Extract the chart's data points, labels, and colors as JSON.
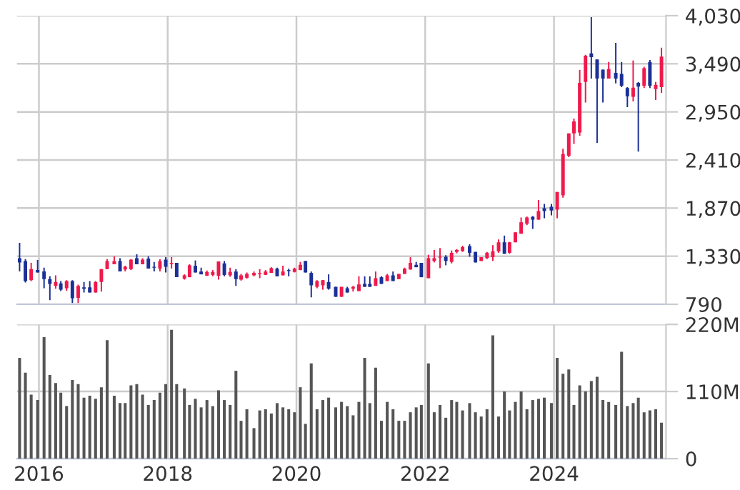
{
  "chart_data": [
    {
      "type": "candlestick",
      "x": [
        2015.7,
        2015.79,
        2015.88,
        2015.98,
        2016.08,
        2016.17,
        2016.26,
        2016.34,
        2016.43,
        2016.52,
        2016.61,
        2016.7,
        2016.79,
        2016.88,
        2016.97,
        2017.06,
        2017.17,
        2017.26,
        2017.34,
        2017.43,
        2017.52,
        2017.61,
        2017.7,
        2017.79,
        2017.88,
        2017.97,
        2018.06,
        2018.14,
        2018.26,
        2018.34,
        2018.43,
        2018.52,
        2018.61,
        2018.7,
        2018.79,
        2018.88,
        2018.97,
        2019.06,
        2019.14,
        2019.23,
        2019.34,
        2019.43,
        2019.52,
        2019.61,
        2019.7,
        2019.79,
        2019.88,
        2019.97,
        2020.06,
        2020.14,
        2020.23,
        2020.32,
        2020.41,
        2020.5,
        2020.61,
        2020.7,
        2020.79,
        2020.88,
        2020.97,
        2021.06,
        2021.14,
        2021.23,
        2021.32,
        2021.41,
        2021.5,
        2021.59,
        2021.68,
        2021.77,
        2021.86,
        2021.94,
        2022.05,
        2022.14,
        2022.23,
        2022.32,
        2022.41,
        2022.49,
        2022.58,
        2022.69,
        2022.78,
        2022.87,
        2022.96,
        2023.05,
        2023.14,
        2023.23,
        2023.31,
        2023.4,
        2023.49,
        2023.58,
        2023.67,
        2023.76,
        2023.85,
        2023.96,
        2024.05,
        2024.14,
        2024.23,
        2024.31,
        2024.4,
        2024.49,
        2024.58,
        2024.67,
        2024.76,
        2024.85,
        2024.96,
        2025.05,
        2025.14,
        2025.23,
        2025.31,
        2025.4,
        2025.49,
        2025.58,
        2025.67
      ],
      "ohlc": [
        [
          1308,
          1480,
          1158,
          1260
        ],
        [
          1276,
          1298,
          1035,
          1051
        ],
        [
          1061,
          1255,
          1051,
          1185
        ],
        [
          1174,
          1287,
          1147,
          1147
        ],
        [
          1158,
          1201,
          970,
          1072
        ],
        [
          1072,
          1104,
          836,
          1019
        ],
        [
          997,
          1115,
          965,
          1040
        ],
        [
          1024,
          1051,
          938,
          954
        ],
        [
          970,
          1061,
          943,
          1051
        ],
        [
          1051,
          1061,
          804,
          858
        ],
        [
          863,
          1010,
          804,
          997
        ],
        [
          981,
          1040,
          922,
          965
        ],
        [
          981,
          1051,
          922,
          922
        ],
        [
          922,
          1051,
          922,
          1040
        ],
        [
          1040,
          1185,
          933,
          1185
        ],
        [
          1185,
          1298,
          1185,
          1276
        ],
        [
          1239,
          1330,
          1239,
          1276
        ],
        [
          1276,
          1308,
          1158,
          1158
        ],
        [
          1180,
          1223,
          1158,
          1212
        ],
        [
          1185,
          1298,
          1174,
          1292
        ],
        [
          1308,
          1351,
          1239,
          1239
        ],
        [
          1239,
          1308,
          1239,
          1292
        ],
        [
          1303,
          1330,
          1190,
          1190
        ],
        [
          1212,
          1266,
          1158,
          1201
        ],
        [
          1190,
          1298,
          1158,
          1276
        ],
        [
          1292,
          1319,
          1147,
          1212
        ],
        [
          1244,
          1319,
          1190,
          1255
        ],
        [
          1255,
          1255,
          1094,
          1094
        ],
        [
          1078,
          1126,
          1067,
          1115
        ],
        [
          1094,
          1239,
          1094,
          1228
        ],
        [
          1223,
          1282,
          1147,
          1147
        ],
        [
          1158,
          1201,
          1126,
          1126
        ],
        [
          1110,
          1169,
          1110,
          1153
        ],
        [
          1120,
          1174,
          1104,
          1153
        ],
        [
          1110,
          1271,
          1067,
          1271
        ],
        [
          1249,
          1276,
          1104,
          1120
        ],
        [
          1115,
          1201,
          1099,
          1153
        ],
        [
          1158,
          1185,
          997,
          1072
        ],
        [
          1067,
          1131,
          1056,
          1115
        ],
        [
          1088,
          1147,
          1078,
          1131
        ],
        [
          1115,
          1158,
          1104,
          1142
        ],
        [
          1131,
          1185,
          1083,
          1142
        ],
        [
          1120,
          1174,
          1120,
          1158
        ],
        [
          1142,
          1206,
          1142,
          1196
        ],
        [
          1190,
          1201,
          1104,
          1104
        ],
        [
          1115,
          1223,
          1115,
          1158
        ],
        [
          1174,
          1190,
          1104,
          1163
        ],
        [
          1153,
          1201,
          1147,
          1190
        ],
        [
          1174,
          1266,
          1174,
          1233
        ],
        [
          1276,
          1276,
          1147,
          1147
        ],
        [
          1142,
          1158,
          868,
          1003
        ],
        [
          986,
          1061,
          970,
          1051
        ],
        [
          1003,
          1061,
          954,
          1061
        ],
        [
          1040,
          1126,
          954,
          965
        ],
        [
          986,
          986,
          874,
          874
        ],
        [
          874,
          986,
          874,
          986
        ],
        [
          970,
          986,
          922,
          922
        ],
        [
          965,
          997,
          933,
          986
        ],
        [
          938,
          1104,
          938,
          1013
        ],
        [
          1019,
          1104,
          986,
          986
        ],
        [
          1019,
          1104,
          986,
          986
        ],
        [
          997,
          1158,
          997,
          1083
        ],
        [
          1094,
          1104,
          1019,
          1019
        ],
        [
          1051,
          1131,
          1051,
          1115
        ],
        [
          1115,
          1158,
          1051,
          1051
        ],
        [
          1072,
          1131,
          1072,
          1131
        ],
        [
          1131,
          1201,
          1131,
          1190
        ],
        [
          1180,
          1319,
          1180,
          1255
        ],
        [
          1233,
          1266,
          1206,
          1206
        ],
        [
          1255,
          1255,
          1094,
          1094
        ],
        [
          1083,
          1346,
          1083,
          1308
        ],
        [
          1276,
          1400,
          1260,
          1308
        ],
        [
          1314,
          1421,
          1196,
          1324
        ],
        [
          1324,
          1341,
          1228,
          1276
        ],
        [
          1266,
          1394,
          1249,
          1368
        ],
        [
          1378,
          1410,
          1362,
          1400
        ],
        [
          1389,
          1448,
          1378,
          1432
        ],
        [
          1443,
          1464,
          1324,
          1368
        ],
        [
          1378,
          1378,
          1260,
          1260
        ],
        [
          1276,
          1319,
          1276,
          1319
        ],
        [
          1308,
          1378,
          1298,
          1368
        ],
        [
          1319,
          1454,
          1276,
          1384
        ],
        [
          1384,
          1518,
          1368,
          1486
        ],
        [
          1486,
          1561,
          1357,
          1357
        ],
        [
          1368,
          1491,
          1357,
          1486
        ],
        [
          1486,
          1598,
          1486,
          1598
        ],
        [
          1582,
          1765,
          1582,
          1711
        ],
        [
          1695,
          1775,
          1679,
          1765
        ],
        [
          1772,
          1781,
          1636,
          1740
        ],
        [
          1740,
          1960,
          1740,
          1837
        ],
        [
          1869,
          1917,
          1756,
          1837
        ],
        [
          1885,
          1917,
          1788,
          1842
        ],
        [
          1853,
          2051,
          1756,
          2051
        ],
        [
          2013,
          2537,
          1986,
          2478
        ],
        [
          2457,
          2708,
          2441,
          2708
        ],
        [
          2708,
          2874,
          2591,
          2842
        ],
        [
          2719,
          3420,
          2682,
          3276
        ],
        [
          3286,
          3591,
          3056,
          3581
        ],
        [
          3607,
          4014,
          3324,
          3565
        ],
        [
          3538,
          3538,
          2602,
          3324
        ],
        [
          3425,
          3425,
          3056,
          3324
        ],
        [
          3324,
          3511,
          3324,
          3431
        ],
        [
          3388,
          3725,
          3270,
          3324
        ],
        [
          3377,
          3511,
          3227,
          3244
        ],
        [
          3217,
          3227,
          3003,
          3126
        ],
        [
          3120,
          3527,
          3067,
          3222
        ],
        [
          3276,
          3286,
          2505,
          3233
        ],
        [
          3243,
          3457,
          3217,
          3441
        ],
        [
          3511,
          3532,
          3217,
          3243
        ],
        [
          3206,
          3286,
          3083,
          3254
        ],
        [
          3227,
          3671,
          3163,
          3570
        ]
      ],
      "colors": [
        "#1b3096",
        "#1b3096",
        "#f0194b",
        "#1b3096",
        "#1b3096",
        "#1b3096",
        "#f0194b",
        "#1b3096",
        "#f0194b",
        "#1b3096",
        "#f0194b",
        "#1b3096",
        "#1b3096",
        "#f0194b",
        "#f0194b",
        "#f0194b",
        "#f0194b",
        "#1b3096",
        "#f0194b",
        "#f0194b",
        "#1b3096",
        "#f0194b",
        "#1b3096",
        "#1b3096",
        "#f0194b",
        "#1b3096",
        "#f0194b",
        "#1b3096",
        "#f0194b",
        "#f0194b",
        "#1b3096",
        "#1b3096",
        "#f0194b",
        "#f0194b",
        "#f0194b",
        "#1b3096",
        "#f0194b",
        "#1b3096",
        "#f0194b",
        "#f0194b",
        "#f0194b",
        "#f0194b",
        "#f0194b",
        "#f0194b",
        "#1b3096",
        "#f0194b",
        "#1b3096",
        "#f0194b",
        "#f0194b",
        "#1b3096",
        "#1b3096",
        "#f0194b",
        "#f0194b",
        "#1b3096",
        "#1b3096",
        "#f0194b",
        "#1b3096",
        "#f0194b",
        "#f0194b",
        "#1b3096",
        "#1b3096",
        "#f0194b",
        "#1b3096",
        "#f0194b",
        "#1b3096",
        "#f0194b",
        "#f0194b",
        "#f0194b",
        "#1b3096",
        "#1b3096",
        "#f0194b",
        "#f0194b",
        "#f0194b",
        "#1b3096",
        "#f0194b",
        "#f0194b",
        "#f0194b",
        "#1b3096",
        "#1b3096",
        "#f0194b",
        "#f0194b",
        "#f0194b",
        "#f0194b",
        "#1b3096",
        "#f0194b",
        "#f0194b",
        "#f0194b",
        "#f0194b",
        "#1b3096",
        "#f0194b",
        "#1b3096",
        "#1b3096",
        "#f0194b",
        "#f0194b",
        "#f0194b",
        "#f0194b",
        "#f0194b",
        "#f0194b",
        "#1b3096",
        "#1b3096",
        "#1b3096",
        "#f0194b",
        "#1b3096",
        "#1b3096",
        "#1b3096",
        "#f0194b",
        "#1b3096",
        "#f0194b",
        "#1b3096",
        "#f0194b",
        "#f0194b"
      ],
      "xlim": [
        2015.66,
        2025.74
      ],
      "xticks": [
        2016,
        2018,
        2020,
        2022,
        2024
      ],
      "ylim": [
        790,
        4030
      ],
      "yticks": [
        790,
        {
          "value": 1330,
          "label": "1,330"
        },
        {
          "value": 1870,
          "label": "1,870"
        },
        {
          "value": 2410,
          "label": "2,410"
        },
        {
          "value": 2950,
          "label": "2,950"
        },
        {
          "value": 3490,
          "label": "3,490"
        },
        {
          "value": 4030,
          "label": "4,030"
        }
      ],
      "grid": true,
      "tick_labels": "y"
    },
    {
      "type": "bar",
      "x": [
        2015.7,
        2015.79,
        2015.88,
        2015.98,
        2016.08,
        2016.17,
        2016.26,
        2016.34,
        2016.43,
        2016.52,
        2016.61,
        2016.7,
        2016.79,
        2016.88,
        2016.97,
        2017.06,
        2017.17,
        2017.26,
        2017.34,
        2017.43,
        2017.52,
        2017.61,
        2017.7,
        2017.79,
        2017.88,
        2017.97,
        2018.06,
        2018.14,
        2018.26,
        2018.34,
        2018.43,
        2018.52,
        2018.61,
        2018.7,
        2018.79,
        2018.88,
        2018.97,
        2019.06,
        2019.14,
        2019.23,
        2019.34,
        2019.43,
        2019.52,
        2019.61,
        2019.7,
        2019.79,
        2019.88,
        2019.97,
        2020.06,
        2020.14,
        2020.23,
        2020.32,
        2020.41,
        2020.5,
        2020.61,
        2020.7,
        2020.79,
        2020.88,
        2020.97,
        2021.06,
        2021.14,
        2021.23,
        2021.32,
        2021.41,
        2021.5,
        2021.59,
        2021.68,
        2021.77,
        2021.86,
        2021.94,
        2022.05,
        2022.14,
        2022.23,
        2022.32,
        2022.41,
        2022.49,
        2022.58,
        2022.69,
        2022.78,
        2022.87,
        2022.96,
        2023.05,
        2023.14,
        2023.23,
        2023.31,
        2023.4,
        2023.49,
        2023.58,
        2023.67,
        2023.76,
        2023.85,
        2023.96,
        2024.05,
        2024.14,
        2024.23,
        2024.31,
        2024.4,
        2024.49,
        2024.58,
        2024.67,
        2024.76,
        2024.85,
        2024.96,
        2025.05,
        2025.14,
        2025.23,
        2025.31,
        2025.4,
        2025.49,
        2025.58,
        2025.67
      ],
      "values": [
        165,
        141,
        105,
        96,
        199,
        137,
        124,
        108,
        86,
        129,
        122,
        100,
        103,
        98,
        117,
        194,
        103,
        91,
        91,
        120,
        122,
        105,
        88,
        96,
        108,
        122,
        211,
        122,
        115,
        88,
        98,
        84,
        96,
        86,
        112,
        96,
        88,
        144,
        62,
        81,
        50,
        79,
        81,
        74,
        91,
        84,
        81,
        76,
        117,
        57,
        156,
        81,
        96,
        100,
        84,
        93,
        86,
        71,
        93,
        165,
        91,
        149,
        62,
        93,
        81,
        62,
        62,
        76,
        84,
        88,
        156,
        76,
        88,
        67,
        96,
        93,
        79,
        91,
        76,
        69,
        81,
        202,
        69,
        110,
        79,
        93,
        110,
        81,
        96,
        98,
        100,
        91,
        165,
        139,
        146,
        88,
        120,
        110,
        127,
        134,
        96,
        93,
        88,
        175,
        86,
        91,
        100,
        76,
        79,
        81,
        59
      ],
      "color": "#555555",
      "xlim": [
        2015.66,
        2025.74
      ],
      "xticks": [
        2016,
        2018,
        2020,
        2022,
        2024
      ],
      "ylim": [
        0,
        220
      ],
      "yticks": [
        0,
        {
          "value": 110,
          "label": "110M"
        },
        {
          "value": 220,
          "label": "220M"
        }
      ],
      "grid": true
    }
  ]
}
